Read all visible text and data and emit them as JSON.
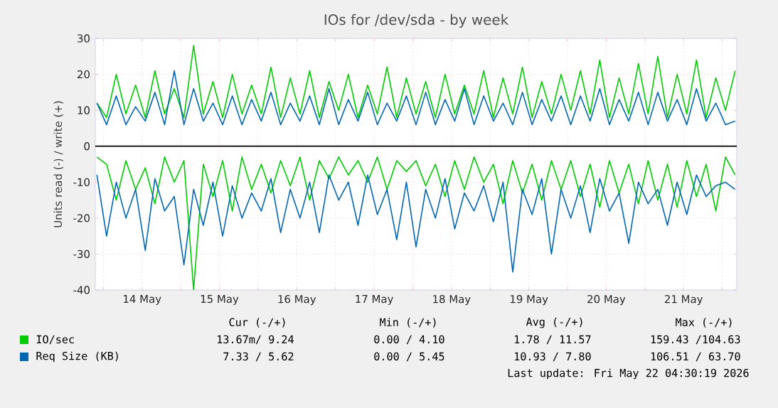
{
  "chart_data": {
    "type": "line",
    "title": "IOs for /dev/sda - by week",
    "ylabel": "Units read (-) / write (+)",
    "xlim": [
      "2026-05-13T21:30",
      "2026-05-22T04:30"
    ],
    "xticks": [
      {
        "value": "2026-05-14T00:00",
        "label": null
      },
      {
        "value": "2026-05-14T12:00",
        "label": "14 May"
      },
      {
        "value": "2026-05-15T00:00",
        "label": null
      },
      {
        "value": "2026-05-15T12:00",
        "label": "15 May"
      },
      {
        "value": "2026-05-16T00:00",
        "label": null
      },
      {
        "value": "2026-05-16T12:00",
        "label": "16 May"
      },
      {
        "value": "2026-05-17T00:00",
        "label": null
      },
      {
        "value": "2026-05-17T12:00",
        "label": "17 May"
      },
      {
        "value": "2026-05-18T00:00",
        "label": null
      },
      {
        "value": "2026-05-18T12:00",
        "label": "18 May"
      },
      {
        "value": "2026-05-19T00:00",
        "label": null
      },
      {
        "value": "2026-05-19T12:00",
        "label": "19 May"
      },
      {
        "value": "2026-05-20T00:00",
        "label": null
      },
      {
        "value": "2026-05-20T12:00",
        "label": "20 May"
      },
      {
        "value": "2026-05-21T00:00",
        "label": null
      },
      {
        "value": "2026-05-21T12:00",
        "label": "21 May"
      },
      {
        "value": "2026-05-22T00:00",
        "label": null
      }
    ],
    "ylim": [
      -40,
      30
    ],
    "yticks": [
      -40,
      -30,
      -20,
      -10,
      0,
      10,
      20,
      30
    ],
    "grid": true,
    "legend": "bottom",
    "x": [
      "2026-05-13T22:00",
      "2026-05-14T01:00",
      "2026-05-14T04:00",
      "2026-05-14T07:00",
      "2026-05-14T10:00",
      "2026-05-14T13:00",
      "2026-05-14T16:00",
      "2026-05-14T19:00",
      "2026-05-14T22:00",
      "2026-05-15T01:00",
      "2026-05-15T04:00",
      "2026-05-15T07:00",
      "2026-05-15T10:00",
      "2026-05-15T13:00",
      "2026-05-15T16:00",
      "2026-05-15T19:00",
      "2026-05-15T22:00",
      "2026-05-16T01:00",
      "2026-05-16T04:00",
      "2026-05-16T07:00",
      "2026-05-16T10:00",
      "2026-05-16T13:00",
      "2026-05-16T16:00",
      "2026-05-16T19:00",
      "2026-05-16T22:00",
      "2026-05-17T01:00",
      "2026-05-17T04:00",
      "2026-05-17T07:00",
      "2026-05-17T10:00",
      "2026-05-17T13:00",
      "2026-05-17T16:00",
      "2026-05-17T19:00",
      "2026-05-17T22:00",
      "2026-05-18T01:00",
      "2026-05-18T04:00",
      "2026-05-18T07:00",
      "2026-05-18T10:00",
      "2026-05-18T13:00",
      "2026-05-18T16:00",
      "2026-05-18T19:00",
      "2026-05-18T22:00",
      "2026-05-19T01:00",
      "2026-05-19T04:00",
      "2026-05-19T07:00",
      "2026-05-19T10:00",
      "2026-05-19T13:00",
      "2026-05-19T16:00",
      "2026-05-19T19:00",
      "2026-05-19T22:00",
      "2026-05-20T01:00",
      "2026-05-20T04:00",
      "2026-05-20T07:00",
      "2026-05-20T10:00",
      "2026-05-20T13:00",
      "2026-05-20T16:00",
      "2026-05-20T19:00",
      "2026-05-20T22:00",
      "2026-05-21T01:00",
      "2026-05-21T04:00",
      "2026-05-21T07:00",
      "2026-05-21T10:00",
      "2026-05-21T13:00",
      "2026-05-21T16:00",
      "2026-05-21T19:00",
      "2026-05-21T22:00",
      "2026-05-22T01:00",
      "2026-05-22T04:00"
    ],
    "series": [
      {
        "color": "#00cc00",
        "values": [
          -3,
          -5,
          -15,
          -4,
          -12,
          -6,
          -16,
          -3,
          -10,
          -4,
          -40,
          -5,
          -14,
          -4,
          -18,
          -3,
          -12,
          -5,
          -13,
          -4,
          -11,
          -3,
          -15,
          -4,
          -9,
          -3,
          -8,
          -4,
          -10,
          -3,
          -12,
          -4,
          -7,
          -4,
          -11,
          -5,
          -14,
          -4,
          -12,
          -3,
          -10,
          -5,
          -16,
          -4,
          -13,
          -5,
          -15,
          -4,
          -12,
          -4,
          -14,
          -5,
          -17,
          -4,
          -13,
          -5,
          -16,
          -4,
          -15,
          -5,
          -17,
          -4,
          -14,
          -5,
          -18,
          -3,
          -8
        ]
      },
      {
        "name": "IO/sec",
        "color": "#00cc00",
        "values": [
          12,
          8,
          20,
          9,
          17,
          8,
          21,
          9,
          16,
          8,
          28,
          9,
          18,
          8,
          20,
          9,
          17,
          9,
          22,
          8,
          19,
          9,
          21,
          8,
          18,
          10,
          20,
          8,
          17,
          9,
          22,
          8,
          19,
          9,
          18,
          8,
          20,
          9,
          17,
          9,
          21,
          8,
          19,
          9,
          22,
          8,
          18,
          9,
          20,
          10,
          21,
          9,
          24,
          8,
          19,
          9,
          23,
          9,
          25,
          8,
          20,
          9,
          24,
          8,
          19,
          10,
          21
        ]
      },
      {
        "color": "#0066b3",
        "values": [
          -8,
          -25,
          -10,
          -20,
          -12,
          -29,
          -9,
          -18,
          -14,
          -33,
          -12,
          -22,
          -10,
          -25,
          -11,
          -20,
          -13,
          -18,
          -9,
          -24,
          -12,
          -20,
          -10,
          -24,
          -8,
          -15,
          -10,
          -22,
          -8,
          -19,
          -12,
          -26,
          -10,
          -28,
          -12,
          -20,
          -9,
          -23,
          -13,
          -18,
          -11,
          -21,
          -10,
          -35,
          -12,
          -19,
          -9,
          -30,
          -12,
          -20,
          -11,
          -24,
          -9,
          -18,
          -13,
          -27,
          -10,
          -16,
          -12,
          -22,
          -10,
          -19,
          -8,
          -14,
          -11,
          -10,
          -12
        ]
      },
      {
        "name": "Req Size (KB)",
        "color": "#0066b3",
        "values": [
          12,
          6,
          14,
          6,
          11,
          7,
          15,
          6,
          21,
          6,
          16,
          7,
          12,
          6,
          14,
          6,
          13,
          7,
          15,
          6,
          12,
          7,
          14,
          6,
          16,
          6,
          13,
          7,
          15,
          6,
          12,
          7,
          14,
          6,
          15,
          6,
          13,
          7,
          16,
          6,
          14,
          7,
          12,
          6,
          15,
          6,
          13,
          7,
          14,
          6,
          14,
          7,
          16,
          6,
          13,
          7,
          15,
          6,
          15,
          7,
          13,
          6,
          16,
          7,
          12,
          6,
          7
        ]
      }
    ],
    "ref_lines": [
      {
        "axis": "y",
        "value": 0,
        "color": "#000000"
      }
    ],
    "annotations": [
      "Cur (-/+)",
      "Min (-/+)",
      "Avg (-/+)",
      "Max (-/+)",
      "13.67m/ 9.24",
      "0.00 / 4.10",
      "1.78 / 11.57",
      "159.43 /104.63",
      "7.33 / 5.62",
      "0.00 / 5.45",
      "10.93 / 7.80",
      "106.51 / 63.70",
      "Last update: Fri May 22 04:30:19 2026"
    ]
  }
}
